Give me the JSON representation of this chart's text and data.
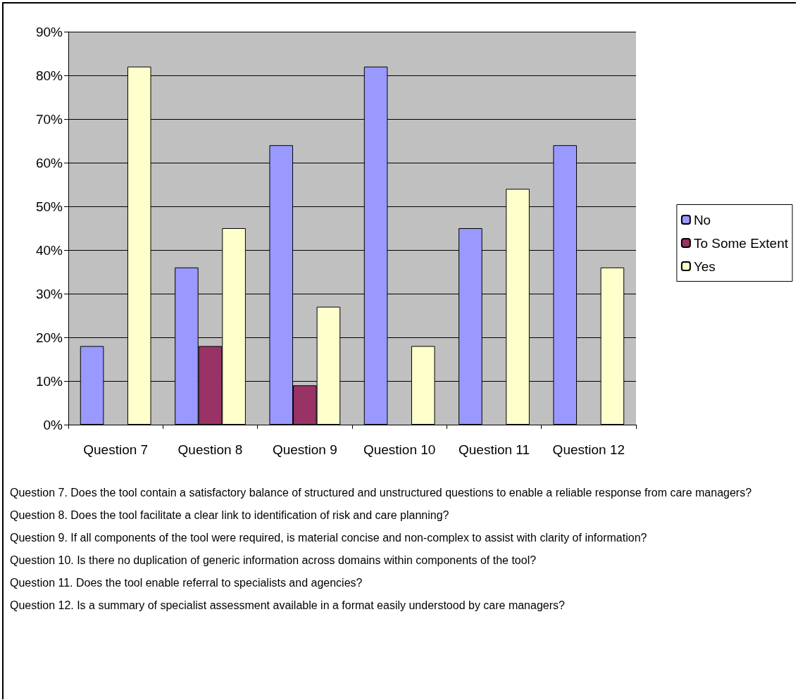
{
  "chart_data": {
    "type": "bar",
    "categories": [
      "Question 7",
      "Question 8",
      "Question 9",
      "Question 10",
      "Question 11",
      "Question 12"
    ],
    "series": [
      {
        "name": "No",
        "color": "#9999ff",
        "values": [
          18,
          36,
          64,
          82,
          45,
          64
        ]
      },
      {
        "name": "To Some Extent",
        "color": "#993366",
        "values": [
          null,
          18,
          9,
          null,
          null,
          null
        ]
      },
      {
        "name": "Yes",
        "color": "#ffffcc",
        "values": [
          82,
          45,
          27,
          18,
          54,
          36
        ]
      }
    ],
    "ylim": [
      0,
      90
    ],
    "yticks": [
      {
        "value": 0,
        "label": "0%"
      },
      {
        "value": 10,
        "label": "10%"
      },
      {
        "value": 20,
        "label": "20%"
      },
      {
        "value": 30,
        "label": "30%"
      },
      {
        "value": 40,
        "label": "40%"
      },
      {
        "value": 50,
        "label": "50%"
      },
      {
        "value": 60,
        "label": "60%"
      },
      {
        "value": 70,
        "label": "70%"
      },
      {
        "value": 80,
        "label": "80%"
      },
      {
        "value": 90,
        "label": "90%"
      }
    ],
    "grid": "y",
    "legend": "right",
    "annotations": [
      "Question 7.  Does the tool contain a satisfactory balance of structured and unstructured questions to enable a reliable response from care managers?",
      "Question 8.  Does the tool facilitate a clear link to identification of risk and care planning?",
      "Question 9.  If all components of the tool were required, is material concise and non-complex to assist with clarity of information?",
      "Question 10.  Is there no duplication of generic information across domains within components of the tool?",
      "Question 11.  Does the tool enable referral to specialists and agencies?",
      "Question 12.  Is a summary of specialist assessment available in a format easily understood by care managers?"
    ]
  }
}
